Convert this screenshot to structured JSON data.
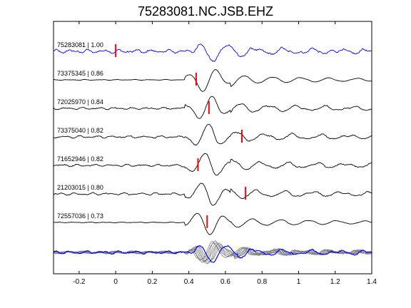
{
  "chart_data": {
    "type": "line",
    "title": "75283081.NC.JSB.EHZ",
    "xlabel": "",
    "ylabel": "",
    "xlim": [
      -0.34,
      1.4
    ],
    "xticks": [
      "-0.2",
      "0",
      "0.2",
      "0.4",
      "0.6",
      "0.8",
      "1",
      "1.2",
      "1.4"
    ],
    "xtick_values": [
      -0.2,
      0,
      0.2,
      0.4,
      0.6,
      0.8,
      1.0,
      1.2,
      1.4
    ],
    "grid": false,
    "colors": {
      "reference": "#0000ff",
      "trace": "#000000",
      "stack": "#808080",
      "pick": "#ff0000"
    },
    "series": [
      {
        "label": "75283081 | 1.00",
        "pick_time": 0.0,
        "color": "#0000ff"
      },
      {
        "label": "73375345 | 0.86",
        "pick_time": 0.44,
        "color": "#000000"
      },
      {
        "label": "72025970 | 0.84",
        "pick_time": 0.51,
        "color": "#000000"
      },
      {
        "label": "73375040 | 0.82",
        "pick_time": 0.69,
        "color": "#000000"
      },
      {
        "label": "71652946 | 0.82",
        "pick_time": 0.45,
        "color": "#000000"
      },
      {
        "label": "21203015 | 0.80",
        "pick_time": 0.71,
        "color": "#000000"
      },
      {
        "label": "72557036 | 0.73",
        "pick_time": 0.5,
        "color": "#000000"
      }
    ],
    "stack_trace_count": 8
  }
}
